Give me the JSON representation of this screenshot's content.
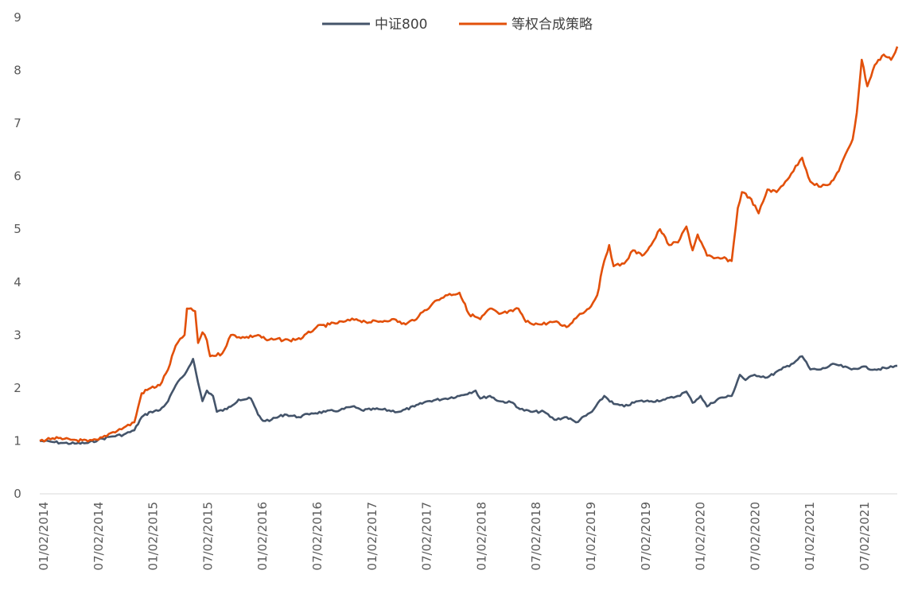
{
  "chart_data": {
    "type": "line",
    "title": "",
    "xlabel": "",
    "ylabel": "",
    "ylim": [
      0,
      9
    ],
    "yticks": [
      0,
      1,
      2,
      3,
      4,
      5,
      6,
      7,
      8,
      9
    ],
    "grid": false,
    "legend_position": "top-center",
    "x_tick_labels": [
      "01/02/2014",
      "07/02/2014",
      "01/02/2015",
      "07/02/2015",
      "01/02/2016",
      "07/02/2016",
      "01/02/2017",
      "07/02/2017",
      "01/02/2018",
      "07/02/2018",
      "01/02/2019",
      "07/02/2019",
      "01/02/2020",
      "07/02/2020",
      "01/02/2021",
      "07/02/2021"
    ],
    "x_range": [
      "2014-01-02",
      "2021-12-31"
    ],
    "series": [
      {
        "name": "中证800",
        "color": "#44546A",
        "points": [
          [
            "2014-01-02",
            1.0
          ],
          [
            "2014-02-15",
            0.98
          ],
          [
            "2014-03-20",
            0.96
          ],
          [
            "2014-05-01",
            0.95
          ],
          [
            "2014-06-15",
            0.96
          ],
          [
            "2014-07-20",
            1.02
          ],
          [
            "2014-09-01",
            1.08
          ],
          [
            "2014-10-15",
            1.12
          ],
          [
            "2014-11-20",
            1.2
          ],
          [
            "2014-12-15",
            1.45
          ],
          [
            "2015-01-15",
            1.55
          ],
          [
            "2015-02-15",
            1.58
          ],
          [
            "2015-03-15",
            1.75
          ],
          [
            "2015-04-10",
            2.05
          ],
          [
            "2015-05-10",
            2.25
          ],
          [
            "2015-06-08",
            2.55
          ],
          [
            "2015-06-25",
            2.1
          ],
          [
            "2015-07-10",
            1.75
          ],
          [
            "2015-07-25",
            1.95
          ],
          [
            "2015-08-15",
            1.85
          ],
          [
            "2015-08-28",
            1.55
          ],
          [
            "2015-10-01",
            1.6
          ],
          [
            "2015-11-10",
            1.78
          ],
          [
            "2015-12-22",
            1.8
          ],
          [
            "2016-01-15",
            1.5
          ],
          [
            "2016-02-01",
            1.38
          ],
          [
            "2016-03-01",
            1.4
          ],
          [
            "2016-04-15",
            1.5
          ],
          [
            "2016-06-01",
            1.45
          ],
          [
            "2016-07-15",
            1.52
          ],
          [
            "2016-09-01",
            1.55
          ],
          [
            "2016-10-20",
            1.58
          ],
          [
            "2016-12-01",
            1.65
          ],
          [
            "2017-01-02",
            1.58
          ],
          [
            "2017-03-01",
            1.6
          ],
          [
            "2017-05-10",
            1.55
          ],
          [
            "2017-07-01",
            1.65
          ],
          [
            "2017-08-15",
            1.75
          ],
          [
            "2017-10-15",
            1.8
          ],
          [
            "2017-12-01",
            1.85
          ],
          [
            "2018-01-25",
            1.95
          ],
          [
            "2018-02-10",
            1.8
          ],
          [
            "2018-03-15",
            1.85
          ],
          [
            "2018-04-15",
            1.75
          ],
          [
            "2018-06-01",
            1.72
          ],
          [
            "2018-06-25",
            1.6
          ],
          [
            "2018-08-01",
            1.55
          ],
          [
            "2018-09-15",
            1.55
          ],
          [
            "2018-10-20",
            1.4
          ],
          [
            "2018-12-01",
            1.45
          ],
          [
            "2019-01-02",
            1.35
          ],
          [
            "2019-02-25",
            1.55
          ],
          [
            "2019-04-08",
            1.85
          ],
          [
            "2019-05-10",
            1.7
          ],
          [
            "2019-06-15",
            1.65
          ],
          [
            "2019-08-01",
            1.75
          ],
          [
            "2019-09-15",
            1.75
          ],
          [
            "2019-11-01",
            1.78
          ],
          [
            "2019-12-15",
            1.85
          ],
          [
            "2020-01-13",
            1.93
          ],
          [
            "2020-02-03",
            1.72
          ],
          [
            "2020-03-01",
            1.85
          ],
          [
            "2020-03-23",
            1.65
          ],
          [
            "2020-05-01",
            1.8
          ],
          [
            "2020-06-15",
            1.85
          ],
          [
            "2020-07-13",
            2.25
          ],
          [
            "2020-08-01",
            2.15
          ],
          [
            "2020-09-01",
            2.25
          ],
          [
            "2020-10-15",
            2.2
          ],
          [
            "2020-12-01",
            2.35
          ],
          [
            "2021-01-04",
            2.45
          ],
          [
            "2021-02-10",
            2.6
          ],
          [
            "2021-03-10",
            2.35
          ],
          [
            "2021-04-15",
            2.35
          ],
          [
            "2021-06-01",
            2.45
          ],
          [
            "2021-07-28",
            2.35
          ],
          [
            "2021-09-01",
            2.4
          ],
          [
            "2021-10-15",
            2.35
          ],
          [
            "2021-12-01",
            2.38
          ],
          [
            "2021-12-31",
            2.42
          ]
        ]
      },
      {
        "name": "等权合成策略",
        "color": "#E2500A",
        "points": [
          [
            "2014-01-02",
            1.0
          ],
          [
            "2014-02-15",
            1.05
          ],
          [
            "2014-03-20",
            1.03
          ],
          [
            "2014-05-01",
            1.02
          ],
          [
            "2014-06-15",
            0.99
          ],
          [
            "2014-07-20",
            1.02
          ],
          [
            "2014-09-01",
            1.15
          ],
          [
            "2014-10-15",
            1.25
          ],
          [
            "2014-11-20",
            1.35
          ],
          [
            "2014-12-15",
            1.9
          ],
          [
            "2015-01-15",
            2.0
          ],
          [
            "2015-02-15",
            2.05
          ],
          [
            "2015-03-15",
            2.35
          ],
          [
            "2015-04-10",
            2.8
          ],
          [
            "2015-05-10",
            3.0
          ],
          [
            "2015-05-18",
            3.5
          ],
          [
            "2015-06-15",
            3.45
          ],
          [
            "2015-06-25",
            2.85
          ],
          [
            "2015-07-10",
            3.05
          ],
          [
            "2015-07-25",
            2.9
          ],
          [
            "2015-08-05",
            2.6
          ],
          [
            "2015-09-15",
            2.65
          ],
          [
            "2015-10-15",
            3.0
          ],
          [
            "2015-12-01",
            2.95
          ],
          [
            "2016-01-15",
            3.0
          ],
          [
            "2016-02-15",
            2.9
          ],
          [
            "2016-03-15",
            2.92
          ],
          [
            "2016-05-01",
            2.9
          ],
          [
            "2016-06-15",
            2.95
          ],
          [
            "2016-08-01",
            3.15
          ],
          [
            "2016-09-15",
            3.2
          ],
          [
            "2016-11-01",
            3.25
          ],
          [
            "2016-12-15",
            3.3
          ],
          [
            "2017-01-15",
            3.25
          ],
          [
            "2017-03-01",
            3.25
          ],
          [
            "2017-04-15",
            3.3
          ],
          [
            "2017-06-01",
            3.2
          ],
          [
            "2017-07-15",
            3.35
          ],
          [
            "2017-09-01",
            3.6
          ],
          [
            "2017-10-15",
            3.75
          ],
          [
            "2017-12-01",
            3.8
          ],
          [
            "2018-01-02",
            3.4
          ],
          [
            "2018-02-10",
            3.3
          ],
          [
            "2018-03-15",
            3.5
          ],
          [
            "2018-04-15",
            3.4
          ],
          [
            "2018-06-01",
            3.45
          ],
          [
            "2018-06-20",
            3.5
          ],
          [
            "2018-07-15",
            3.25
          ],
          [
            "2018-09-01",
            3.2
          ],
          [
            "2018-10-20",
            3.25
          ],
          [
            "2018-12-01",
            3.15
          ],
          [
            "2019-01-15",
            3.4
          ],
          [
            "2019-02-15",
            3.5
          ],
          [
            "2019-03-15",
            3.75
          ],
          [
            "2019-04-08",
            4.4
          ],
          [
            "2019-04-25",
            4.7
          ],
          [
            "2019-05-10",
            4.3
          ],
          [
            "2019-06-15",
            4.35
          ],
          [
            "2019-07-15",
            4.6
          ],
          [
            "2019-08-15",
            4.5
          ],
          [
            "2019-09-15",
            4.7
          ],
          [
            "2019-10-15",
            5.0
          ],
          [
            "2019-11-15",
            4.7
          ],
          [
            "2019-12-15",
            4.75
          ],
          [
            "2020-01-13",
            5.05
          ],
          [
            "2020-02-03",
            4.6
          ],
          [
            "2020-02-20",
            4.9
          ],
          [
            "2020-03-23",
            4.5
          ],
          [
            "2020-04-15",
            4.45
          ],
          [
            "2020-05-15",
            4.45
          ],
          [
            "2020-06-15",
            4.4
          ],
          [
            "2020-07-06",
            5.4
          ],
          [
            "2020-07-20",
            5.7
          ],
          [
            "2020-08-15",
            5.6
          ],
          [
            "2020-09-15",
            5.3
          ],
          [
            "2020-10-15",
            5.75
          ],
          [
            "2020-11-15",
            5.7
          ],
          [
            "2020-12-15",
            5.9
          ],
          [
            "2021-01-04",
            6.05
          ],
          [
            "2021-02-10",
            6.35
          ],
          [
            "2021-03-10",
            5.9
          ],
          [
            "2021-04-15",
            5.8
          ],
          [
            "2021-05-15",
            5.85
          ],
          [
            "2021-06-15",
            6.1
          ],
          [
            "2021-07-15",
            6.5
          ],
          [
            "2021-08-01",
            6.7
          ],
          [
            "2021-08-15",
            7.2
          ],
          [
            "2021-09-01",
            8.2
          ],
          [
            "2021-09-20",
            7.7
          ],
          [
            "2021-10-15",
            8.1
          ],
          [
            "2021-11-15",
            8.3
          ],
          [
            "2021-12-10",
            8.2
          ],
          [
            "2021-12-31",
            8.45
          ]
        ]
      }
    ]
  }
}
